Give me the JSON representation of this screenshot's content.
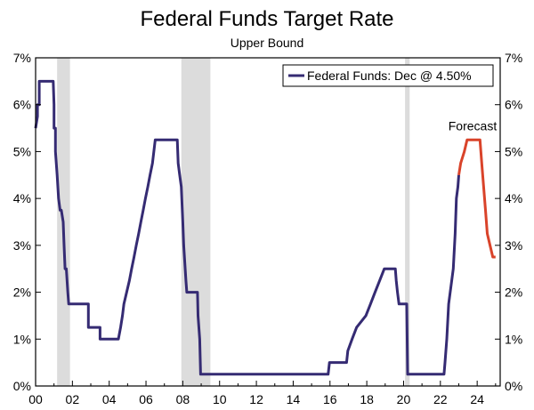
{
  "title": "Federal Funds Target Rate",
  "subtitle": "Upper Bound",
  "colors": {
    "history": "#352b73",
    "forecast": "#d9432a",
    "recession": "#dcdcdc",
    "axis": "#000000"
  },
  "chart_data": {
    "type": "line",
    "title": "Federal Funds Target Rate",
    "subtitle": "Upper Bound",
    "xlabel": "",
    "ylabel": "",
    "xlim": [
      2000.0,
      2025.25
    ],
    "ylim": [
      0,
      7
    ],
    "x_ticks": [
      2000,
      2002,
      2004,
      2006,
      2008,
      2010,
      2012,
      2014,
      2016,
      2018,
      2020,
      2022,
      2024
    ],
    "x_tick_labels": [
      "00",
      "02",
      "04",
      "06",
      "08",
      "10",
      "12",
      "14",
      "16",
      "18",
      "20",
      "22",
      "24"
    ],
    "y_ticks": [
      0,
      1,
      2,
      3,
      4,
      5,
      6,
      7
    ],
    "y_tick_labels": [
      "0%",
      "1%",
      "2%",
      "3%",
      "4%",
      "5%",
      "6%",
      "7%"
    ],
    "grid": false,
    "legend": {
      "placement": "top-right",
      "entries": [
        "Federal Funds: Dec @ 4.50%"
      ]
    },
    "annotations": [
      {
        "text": "Forecast",
        "x": 2023.75,
        "y": 5.45
      }
    ],
    "recessions": [
      {
        "start": 2001.17,
        "end": 2001.87
      },
      {
        "start": 2007.92,
        "end": 2009.5
      },
      {
        "start": 2020.08,
        "end": 2020.33
      }
    ],
    "series": [
      {
        "name": "Federal Funds: Dec @ 4.50%",
        "x": [
          2000.0,
          2000.1,
          2000.1,
          2000.2,
          2000.2,
          2000.37,
          2000.37,
          2000.96,
          2001.0,
          2001.0,
          2001.08,
          2001.08,
          2001.17,
          2001.25,
          2001.33,
          2001.4,
          2001.5,
          2001.55,
          2001.6,
          2001.67,
          2001.75,
          2001.8,
          2001.87,
          2001.95,
          2002.87,
          2002.87,
          2003.5,
          2003.5,
          2004.5,
          2004.62,
          2004.72,
          2004.8,
          2004.95,
          2005.1,
          2005.22,
          2005.35,
          2005.47,
          2005.6,
          2005.72,
          2005.85,
          2005.97,
          2006.1,
          2006.22,
          2006.35,
          2006.5,
          2007.7,
          2007.75,
          2007.83,
          2007.92,
          2008.0,
          2008.05,
          2008.17,
          2008.22,
          2008.33,
          2008.8,
          2008.83,
          2008.92,
          2008.97,
          2015.9,
          2015.97,
          2016.9,
          2016.97,
          2017.2,
          2017.45,
          2017.95,
          2018.2,
          2018.45,
          2018.7,
          2018.95,
          2019.55,
          2019.6,
          2019.67,
          2019.75,
          2019.83,
          2020.17,
          2020.22,
          2022.2,
          2022.25,
          2022.35,
          2022.45,
          2022.7,
          2022.8,
          2022.87,
          2022.95,
          2023.0
        ],
        "values": [
          5.5,
          5.75,
          6.0,
          6.0,
          6.5,
          6.5,
          6.5,
          6.5,
          6.0,
          5.5,
          5.5,
          5.0,
          4.5,
          4.0,
          3.75,
          3.75,
          3.5,
          3.0,
          2.5,
          2.5,
          2.0,
          1.75,
          1.75,
          1.75,
          1.75,
          1.25,
          1.25,
          1.0,
          1.0,
          1.25,
          1.5,
          1.75,
          2.0,
          2.25,
          2.5,
          2.75,
          3.0,
          3.25,
          3.5,
          3.75,
          4.0,
          4.25,
          4.5,
          4.75,
          5.25,
          5.25,
          4.75,
          4.5,
          4.25,
          3.5,
          3.0,
          2.25,
          2.0,
          2.0,
          2.0,
          1.5,
          1.0,
          0.25,
          0.25,
          0.5,
          0.5,
          0.75,
          1.0,
          1.25,
          1.5,
          1.75,
          2.0,
          2.25,
          2.5,
          2.5,
          2.25,
          2.0,
          1.75,
          1.75,
          1.75,
          0.25,
          0.25,
          0.5,
          1.0,
          1.75,
          2.5,
          3.25,
          4.0,
          4.25,
          4.5
        ]
      },
      {
        "name": "Forecast",
        "x": [
          2023.0,
          2023.1,
          2023.3,
          2023.45,
          2023.58,
          2024.15,
          2024.25,
          2024.35,
          2024.45,
          2024.55,
          2024.7,
          2024.85,
          2025.0
        ],
        "values": [
          4.5,
          4.75,
          5.0,
          5.25,
          5.25,
          5.25,
          4.75,
          4.25,
          3.75,
          3.25,
          3.0,
          2.75,
          2.75
        ]
      }
    ]
  }
}
